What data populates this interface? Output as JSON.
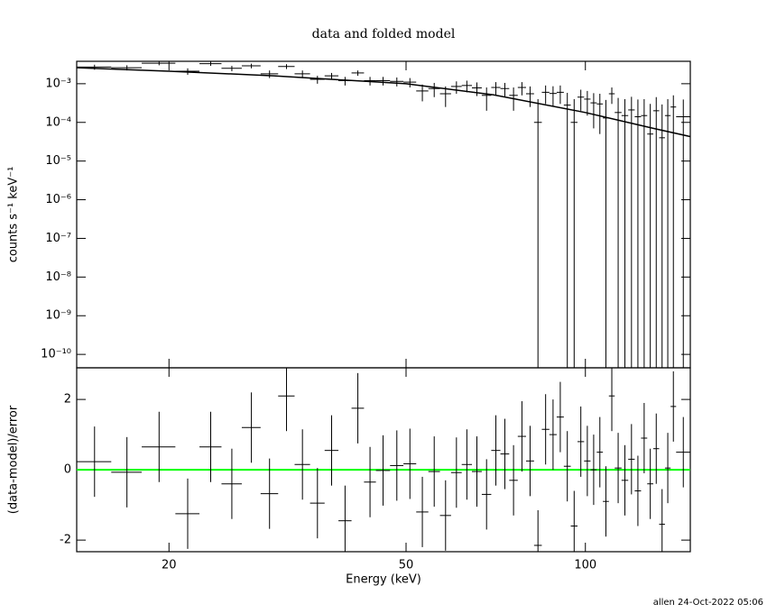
{
  "footer": "allen 24-Oct-2022 05:06",
  "chart_data": [
    {
      "type": "scatter",
      "title": "data and folded model",
      "ylabel": "counts s⁻¹ keV⁻¹",
      "log_x": true,
      "log_y": true,
      "xlim": [
        14,
        150
      ],
      "ylim": [
        4.5e-11,
        0.0038
      ],
      "xticks": [
        20,
        50,
        100
      ],
      "yticks": [
        {
          "value": 0.001,
          "label": "10⁻³"
        },
        {
          "value": 0.0001,
          "label": "10⁻⁴"
        },
        {
          "value": 1e-05,
          "label": "10⁻⁵"
        },
        {
          "value": 1e-06,
          "label": "10⁻⁶"
        },
        {
          "value": 1e-07,
          "label": "10⁻⁷"
        },
        {
          "value": 1e-08,
          "label": "10⁻⁸"
        },
        {
          "value": 1e-09,
          "label": "10⁻⁹"
        },
        {
          "value": 1e-10,
          "label": "10⁻¹⁰"
        }
      ],
      "x": [
        15,
        17,
        19.25,
        21.5,
        23.5,
        25.5,
        27.5,
        29.5,
        31.5,
        33.5,
        35.5,
        37.5,
        39.5,
        41.5,
        43.5,
        45.75,
        48.25,
        50.75,
        53.25,
        55.75,
        58.25,
        60.75,
        63.25,
        65.75,
        68.25,
        70.75,
        73.25,
        75.75,
        78.25,
        80.75,
        83.25,
        85.75,
        88.25,
        90.75,
        93.25,
        95.75,
        98.25,
        100.75,
        103.25,
        105.75,
        108.25,
        110.75,
        113.5,
        116.5,
        119.5,
        122.5,
        125.5,
        128.5,
        131.5,
        134.5,
        137.5,
        140.5,
        146
      ],
      "xerr": [
        1,
        1,
        1.25,
        1,
        1,
        1,
        1,
        1,
        1,
        1,
        1,
        1,
        1,
        1,
        1,
        1.25,
        1.25,
        1.25,
        1.25,
        1.25,
        1.25,
        1.25,
        1.25,
        1.25,
        1.25,
        1.25,
        1.25,
        1.25,
        1.25,
        1.25,
        1.25,
        1.25,
        1.25,
        1.25,
        1.25,
        1.25,
        1.25,
        1.25,
        1.25,
        1.25,
        1.25,
        1.25,
        1.5,
        1.5,
        1.5,
        1.5,
        1.5,
        1.5,
        1.5,
        1.5,
        1.5,
        1.5,
        4
      ],
      "series": [
        {
          "color": "#000000",
          "values": [
            0.0027,
            0.0026,
            0.0034,
            0.0021,
            0.0033,
            0.0025,
            0.0029,
            0.0018,
            0.0028,
            0.0018,
            0.0013,
            0.0016,
            0.0012,
            0.0019,
            0.0012,
            0.0012,
            0.00115,
            0.0011,
            0.00065,
            0.00075,
            0.00055,
            0.00085,
            0.0009,
            0.00078,
            0.0005,
            0.0008,
            0.00075,
            0.0005,
            0.0008,
            0.00055,
            0.0001,
            0.0006,
            0.00056,
            0.0006,
            0.00028,
            0.0001,
            0.00045,
            0.0004,
            0.00032,
            0.0003,
            0.00013,
            0.00055,
            0.00018,
            0.00015,
            0.00021,
            0.00014,
            0.00015,
            5e-05,
            0.0002,
            4e-05,
            0.00015,
            0.00025,
            0.00014
          ],
          "yerr": [
            0.0004,
            0.0004,
            0.0004,
            0.0004,
            0.0004,
            0.0004,
            0.0004,
            0.0004,
            0.0004,
            0.0004,
            0.0003,
            0.0003,
            0.0003,
            0.0003,
            0.0003,
            0.0003,
            0.0003,
            0.0003,
            0.0003,
            0.0003,
            0.0003,
            0.0003,
            0.0003,
            0.0003,
            0.0003,
            0.0003,
            0.0003,
            0.0003,
            0.0003,
            0.0003,
            0.0003,
            0.0003,
            0.0003,
            0.0003,
            0.0003,
            0.0003,
            0.00025,
            0.00025,
            0.00025,
            0.00025,
            0.00025,
            0.00025,
            0.00025,
            0.00025,
            0.00025,
            0.00025,
            0.00025,
            0.00025,
            0.00025,
            0.00025,
            0.00025,
            0.00025,
            0.00025
          ]
        },
        {
          "color": "#000000",
          "style": "line",
          "x": [
            14,
            20,
            30,
            50,
            70,
            100,
            130,
            150
          ],
          "values": [
            0.0026,
            0.0021,
            0.0016,
            0.001,
            0.00052,
            0.00018,
            7e-05,
            4.3e-05
          ]
        }
      ]
    },
    {
      "type": "scatter",
      "ylabel": "(data-model)/error",
      "xlabel": "Energy (keV)",
      "log_x": true,
      "xlim": [
        14,
        150
      ],
      "ylim": [
        -2.33,
        2.9
      ],
      "xticks": [
        20,
        50,
        100
      ],
      "yticks": [
        -2,
        0,
        2
      ],
      "reference_line": {
        "value": 0,
        "color": "#00ff00"
      },
      "x": [
        15,
        17,
        19.25,
        21.5,
        23.5,
        25.5,
        27.5,
        29.5,
        31.5,
        33.5,
        35.5,
        37.5,
        39.5,
        41.5,
        43.5,
        45.75,
        48.25,
        50.75,
        53.25,
        55.75,
        58.25,
        60.75,
        63.25,
        65.75,
        68.25,
        70.75,
        73.25,
        75.75,
        78.25,
        80.75,
        83.25,
        85.75,
        88.25,
        90.75,
        93.25,
        95.75,
        98.25,
        100.75,
        103.25,
        105.75,
        108.25,
        110.75,
        113.5,
        116.5,
        119.5,
        122.5,
        125.5,
        128.5,
        131.5,
        134.5,
        137.5,
        140.5,
        146
      ],
      "xerr": [
        1,
        1,
        1.25,
        1,
        1,
        1,
        1,
        1,
        1,
        1,
        1,
        1,
        1,
        1,
        1,
        1.25,
        1.25,
        1.25,
        1.25,
        1.25,
        1.25,
        1.25,
        1.25,
        1.25,
        1.25,
        1.25,
        1.25,
        1.25,
        1.25,
        1.25,
        1.25,
        1.25,
        1.25,
        1.25,
        1.25,
        1.25,
        1.25,
        1.25,
        1.25,
        1.25,
        1.25,
        1.25,
        1.5,
        1.5,
        1.5,
        1.5,
        1.5,
        1.5,
        1.5,
        1.5,
        1.5,
        1.5,
        4
      ],
      "series": [
        {
          "color": "#000000",
          "values": [
            0.23,
            -0.07,
            0.65,
            -1.25,
            0.65,
            -0.4,
            1.2,
            -0.68,
            2.1,
            0.15,
            -0.95,
            0.55,
            -1.45,
            1.75,
            -0.35,
            -0.02,
            0.12,
            0.17,
            -1.2,
            -0.05,
            -1.3,
            -0.08,
            0.15,
            -0.05,
            -0.7,
            0.55,
            0.45,
            -0.3,
            0.95,
            0.25,
            -2.15,
            1.15,
            1.0,
            1.5,
            0.1,
            -1.6,
            0.8,
            0.25,
            0.0,
            0.5,
            -0.9,
            2.1,
            0.05,
            -0.3,
            0.3,
            -0.6,
            0.9,
            -0.4,
            0.6,
            -1.55,
            0.05,
            1.8,
            0.5
          ],
          "yerr": [
            1,
            1,
            1,
            1,
            1,
            1,
            1,
            1,
            1,
            1,
            1,
            1,
            1,
            1,
            1,
            1,
            1,
            1,
            1,
            1,
            1,
            1,
            1,
            1,
            1,
            1,
            1,
            1,
            1,
            1,
            1,
            1,
            1,
            1,
            1,
            1,
            1,
            1,
            1,
            1,
            1,
            1,
            1,
            1,
            1,
            1,
            1,
            1,
            1,
            1,
            1,
            1,
            1
          ]
        }
      ]
    }
  ]
}
